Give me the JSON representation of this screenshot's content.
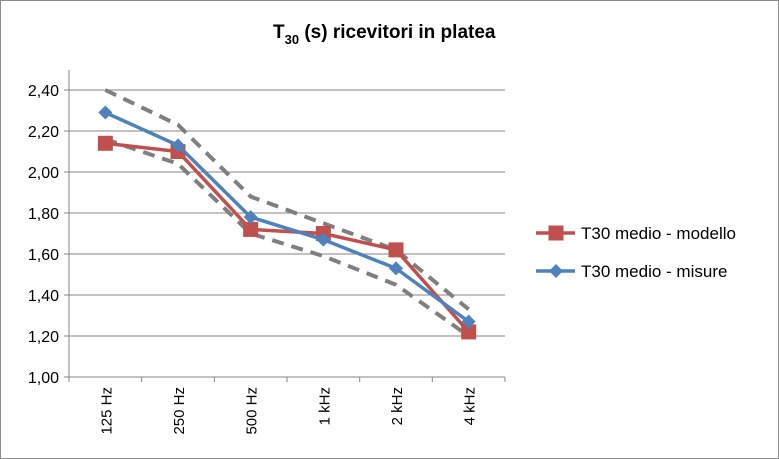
{
  "chart_data": {
    "type": "line",
    "title": {
      "main": "T",
      "sub": "30",
      "rest": " (s) ricevitori in platea"
    },
    "xlabel": "",
    "ylabel": "",
    "categories": [
      "125 Hz",
      "250 Hz",
      "500 Hz",
      "1 kHz",
      "2 kHz",
      "4 kHz"
    ],
    "ylim": [
      1.0,
      2.4
    ],
    "yticks": [
      1.0,
      1.2,
      1.4,
      1.6,
      1.8,
      2.0,
      2.2,
      2.4
    ],
    "ytick_labels": [
      "1,00",
      "1,20",
      "1,40",
      "1,60",
      "1,80",
      "2,00",
      "2,20",
      "2,40"
    ],
    "grid": true,
    "legend_position": "right",
    "series": [
      {
        "name": "T30 medio - modello",
        "values": [
          2.14,
          2.1,
          1.72,
          1.7,
          1.62,
          1.22
        ],
        "color": "#C0504D",
        "marker": "square"
      },
      {
        "name": "T30 medio - misure",
        "values": [
          2.29,
          2.13,
          1.78,
          1.67,
          1.53,
          1.27
        ],
        "color": "#4F81BD",
        "marker": "diamond"
      }
    ],
    "bounds": [
      {
        "name": "upper",
        "values": [
          2.4,
          2.23,
          1.88,
          1.75,
          1.62,
          1.33
        ],
        "color": "#7F7F7F",
        "style": "dashed"
      },
      {
        "name": "lower",
        "values": [
          2.16,
          2.04,
          1.7,
          1.59,
          1.45,
          1.2
        ],
        "color": "#7F7F7F",
        "style": "dashed"
      }
    ]
  }
}
